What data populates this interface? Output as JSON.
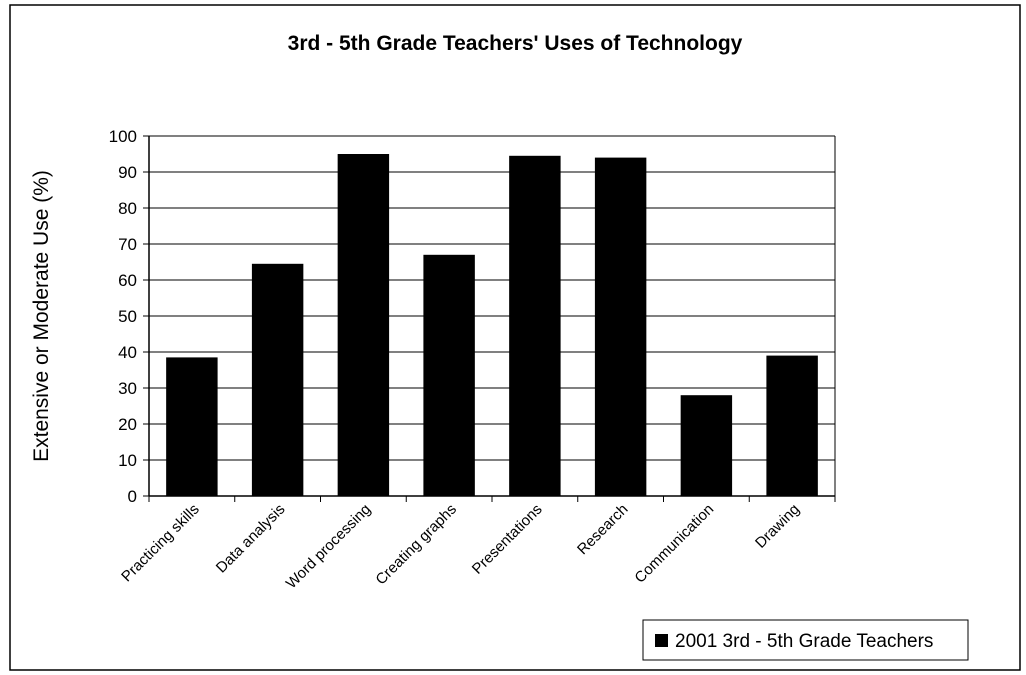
{
  "chart_data": {
    "type": "bar",
    "title": "3rd - 5th Grade Teachers' Uses of Technology",
    "y_label": "Extensive or Moderate Use (%)",
    "categories": [
      "Practicing skills",
      "Data analysis",
      "Word processing",
      "Creating graphs",
      "Presentations",
      "Research",
      "Communication",
      "Drawing"
    ],
    "series": [
      {
        "name": "2001 3rd - 5th Grade Teachers",
        "color": "#000000",
        "values": [
          38.5,
          64.5,
          95,
          67,
          94.5,
          94,
          28,
          39
        ]
      }
    ],
    "ylim": [
      0,
      100
    ],
    "yticks": [
      0,
      10,
      20,
      30,
      40,
      50,
      60,
      70,
      80,
      90,
      100
    ],
    "grid": true,
    "legend": "bottom-right"
  }
}
